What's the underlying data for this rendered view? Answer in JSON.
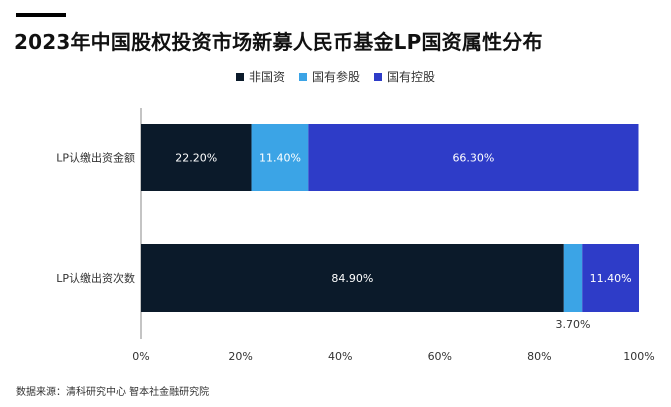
{
  "title": "2023年中国股权投资市场新募人民币基金LP国资属性分布",
  "legend": {
    "items": [
      {
        "label": "非国资",
        "color": "#0b1a2a"
      },
      {
        "label": "国有参股",
        "color": "#3ba4e6"
      },
      {
        "label": "国有控股",
        "color": "#2e3cc8"
      }
    ]
  },
  "source": "数据来源：清科研究中心 智本社金融研究院",
  "chart_data": {
    "type": "bar",
    "orientation": "horizontal",
    "stacked": "percent",
    "categories": [
      "LP认缴出资金额",
      "LP认缴出资次数"
    ],
    "series": [
      {
        "name": "非国资",
        "color": "#0b1a2a",
        "values": [
          22.2,
          84.9
        ],
        "labels": [
          "22.20%",
          "84.90%"
        ]
      },
      {
        "name": "国有参股",
        "color": "#3ba4e6",
        "values": [
          11.4,
          3.7
        ],
        "labels": [
          "11.40%",
          "3.70%"
        ]
      },
      {
        "name": "国有控股",
        "color": "#2e3cc8",
        "values": [
          66.3,
          11.4
        ],
        "labels": [
          "66.30%",
          "11.40%"
        ]
      }
    ],
    "xlim": [
      0,
      100
    ],
    "xticks": [
      "0%",
      "20%",
      "40%",
      "60%",
      "80%",
      "100%"
    ],
    "legend_position": "top",
    "grid": false
  }
}
